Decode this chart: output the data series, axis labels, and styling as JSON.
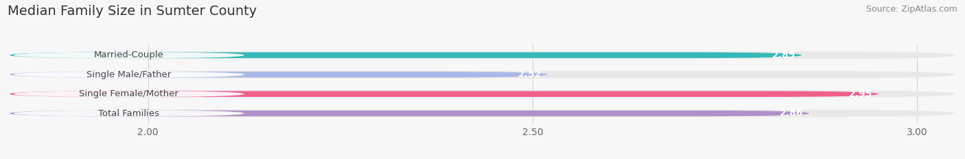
{
  "title": "Median Family Size in Sumter County",
  "source": "Source: ZipAtlas.com",
  "categories": [
    "Married-Couple",
    "Single Male/Father",
    "Single Female/Mother",
    "Total Families"
  ],
  "values": [
    2.85,
    2.52,
    2.95,
    2.86
  ],
  "bar_colors": [
    "#35b8b8",
    "#aab8e8",
    "#f0608a",
    "#b090c8"
  ],
  "bar_bg_color": "#e8e8e8",
  "xlim_min": 1.82,
  "xlim_max": 3.05,
  "xticks": [
    2.0,
    2.5,
    3.0
  ],
  "xtick_labels": [
    "2.00",
    "2.50",
    "3.00"
  ],
  "value_color": "white",
  "label_color": "#444444",
  "title_fontsize": 14,
  "source_fontsize": 9,
  "bar_fontsize": 10,
  "label_fontsize": 9.5,
  "tick_fontsize": 10,
  "background_color": "#f7f7f7"
}
